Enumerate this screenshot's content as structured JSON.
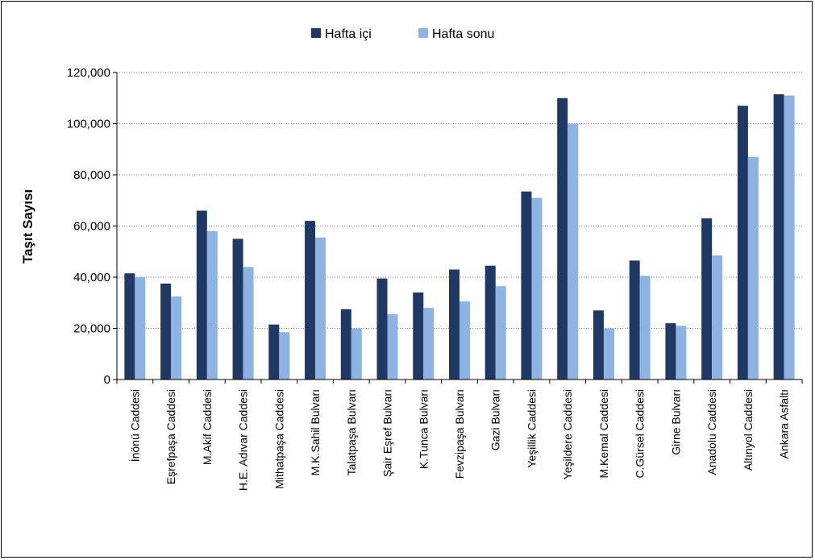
{
  "chart_data": {
    "type": "bar",
    "title": "",
    "xlabel": "",
    "ylabel": "Taşıt Sayısı",
    "ylim": [
      0,
      120000
    ],
    "yticks": [
      "0",
      "20,000",
      "40,000",
      "60,000",
      "80,000",
      "100,000",
      "120,000"
    ],
    "grid": "horizontal dotted",
    "legend_position": "top",
    "categories": [
      "İnönü Caddesi",
      "Eşrefpaşa Caddesi",
      "M.Akif Caddesi",
      "H.E. Adıvar Caddesi",
      "Mithatpaşa Caddesi",
      "M.K.Sahil Bulvarı",
      "Talatpaşa Bulvarı",
      "Şair Eşref Bulvarı",
      "K.Tunca Bulvarı",
      "Fevzipaşa Bulvarı",
      "Gazi Bulvarı",
      "Yeşillik Caddesi",
      "Yeşildere Caddesi",
      "M.Kemal Caddesi",
      "C.Gürsel Caddesi",
      "Girne Bulvarı",
      "Anadolu Caddesi",
      "Altınyol Caddesi",
      "Ankara Asfaltı"
    ],
    "series": [
      {
        "name": "Hafta içi",
        "color": "#1f3864",
        "values": [
          41500,
          37500,
          66000,
          55000,
          21500,
          62000,
          27500,
          39500,
          34000,
          43000,
          44500,
          73500,
          110000,
          27000,
          46500,
          22000,
          63000,
          107000,
          111500
        ]
      },
      {
        "name": "Hafta sonu",
        "color": "#8db3e2",
        "values": [
          40000,
          32500,
          58000,
          44000,
          18500,
          55500,
          20000,
          25500,
          28000,
          30500,
          36500,
          71000,
          100000,
          20000,
          40500,
          21000,
          48500,
          87000,
          111000
        ]
      }
    ]
  }
}
